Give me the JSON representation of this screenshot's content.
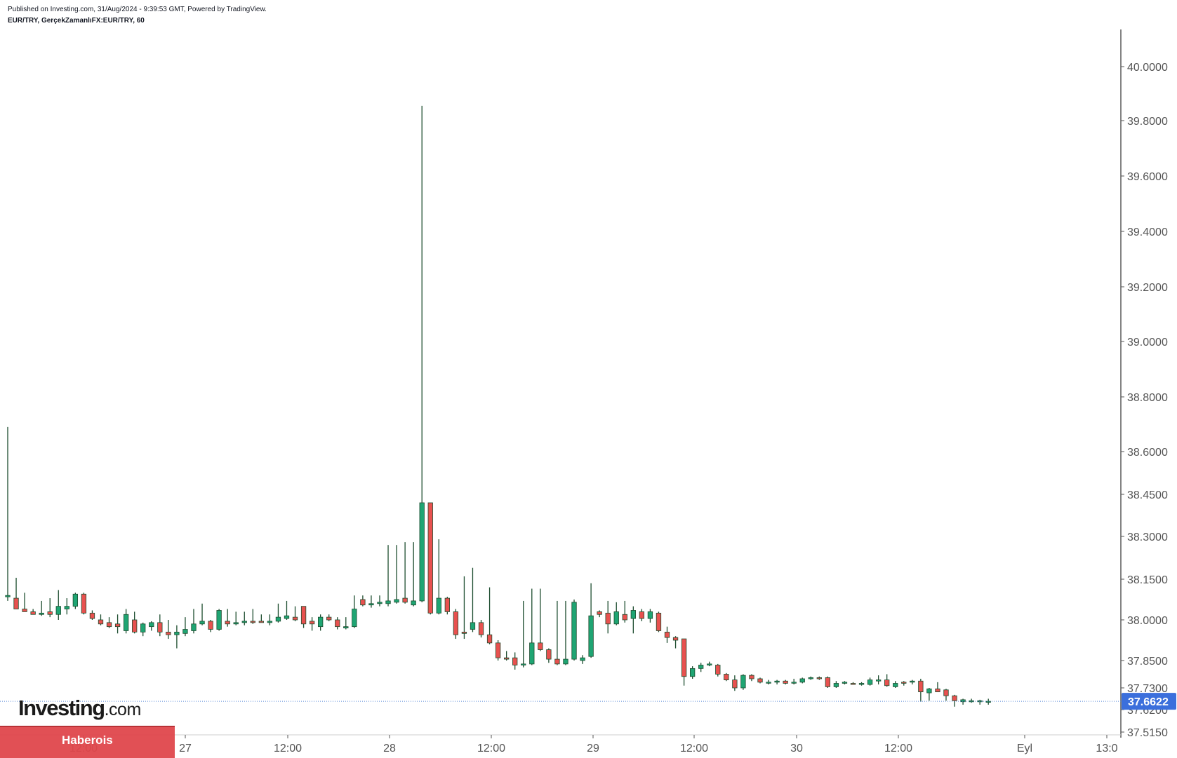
{
  "header": {
    "published": "Published on Investing.com, 31/Aug/2024 - 9:39:53 GMT, Powered by TradingView.",
    "symbol": "EUR/TRY, GerçekZamanlıFX:EUR/TRY, 60"
  },
  "colors": {
    "up": "#1fa573",
    "down": "#e8514f",
    "wick": "#1d4d2f",
    "price_line": "#5b8ad6",
    "price_label_bg": "#3b6fdc",
    "grid": "#ffffff"
  },
  "watermark": {
    "brand": "Investing",
    "suffix": ".com",
    "badge": "Haberois"
  },
  "chart_data": {
    "type": "candlestick",
    "title": "EUR/TRY, GerçekZamanlıFX:EUR/TRY, 60",
    "interval": "60",
    "y_axis": {
      "ticks": [
        "40.0000",
        "39.8000",
        "39.6000",
        "39.4000",
        "39.2000",
        "39.0000",
        "38.8000",
        "38.6000",
        "38.4500",
        "38.3000",
        "38.1500",
        "38.0000",
        "37.8500",
        "37.7300",
        "37.6200",
        "37.5150"
      ],
      "ylim": [
        37.5,
        40.13
      ]
    },
    "x_axis": {
      "ticks": [
        "12:00",
        "27",
        "12:00",
        "28",
        "12:00",
        "29",
        "12:00",
        "30",
        "12:00",
        "Eyl",
        "13:0"
      ]
    },
    "last_price": "37.6622",
    "last_price_value": 37.6622,
    "candles": [
      {
        "o": 38.085,
        "h": 38.69,
        "l": 38.07,
        "c": 38.09
      },
      {
        "o": 38.08,
        "h": 38.155,
        "l": 38.04,
        "c": 38.04
      },
      {
        "o": 38.04,
        "h": 38.1,
        "l": 38.03,
        "c": 38.03
      },
      {
        "o": 38.03,
        "h": 38.04,
        "l": 38.02,
        "c": 38.02
      },
      {
        "o": 38.02,
        "h": 38.07,
        "l": 38.015,
        "c": 38.025
      },
      {
        "o": 38.03,
        "h": 38.08,
        "l": 38.01,
        "c": 38.02
      },
      {
        "o": 38.02,
        "h": 38.11,
        "l": 38.0,
        "c": 38.05
      },
      {
        "o": 38.04,
        "h": 38.08,
        "l": 38.02,
        "c": 38.05
      },
      {
        "o": 38.05,
        "h": 38.1,
        "l": 38.04,
        "c": 38.095
      },
      {
        "o": 38.095,
        "h": 38.1,
        "l": 38.02,
        "c": 38.025
      },
      {
        "o": 38.025,
        "h": 38.035,
        "l": 38.0,
        "c": 38.005
      },
      {
        "o": 38.0,
        "h": 38.02,
        "l": 37.98,
        "c": 37.985
      },
      {
        "o": 37.99,
        "h": 38.01,
        "l": 37.97,
        "c": 37.975
      },
      {
        "o": 37.985,
        "h": 38.02,
        "l": 37.95,
        "c": 37.975
      },
      {
        "o": 37.96,
        "h": 38.04,
        "l": 37.95,
        "c": 38.02
      },
      {
        "o": 38.0,
        "h": 38.03,
        "l": 37.95,
        "c": 37.955
      },
      {
        "o": 37.955,
        "h": 37.99,
        "l": 37.94,
        "c": 37.985
      },
      {
        "o": 37.975,
        "h": 37.995,
        "l": 37.96,
        "c": 37.99
      },
      {
        "o": 37.99,
        "h": 38.02,
        "l": 37.94,
        "c": 37.955
      },
      {
        "o": 37.955,
        "h": 38.0,
        "l": 37.93,
        "c": 37.945
      },
      {
        "o": 37.945,
        "h": 37.98,
        "l": 37.895,
        "c": 37.955
      },
      {
        "o": 37.95,
        "h": 38.01,
        "l": 37.94,
        "c": 37.965
      },
      {
        "o": 37.96,
        "h": 38.04,
        "l": 37.95,
        "c": 37.985
      },
      {
        "o": 37.985,
        "h": 38.06,
        "l": 37.98,
        "c": 37.995
      },
      {
        "o": 37.995,
        "h": 38.0,
        "l": 37.955,
        "c": 37.965
      },
      {
        "o": 37.965,
        "h": 38.04,
        "l": 37.96,
        "c": 38.035
      },
      {
        "o": 37.995,
        "h": 38.04,
        "l": 37.975,
        "c": 37.985
      },
      {
        "o": 37.985,
        "h": 38.03,
        "l": 37.98,
        "c": 37.99
      },
      {
        "o": 37.99,
        "h": 38.03,
        "l": 37.98,
        "c": 37.995
      },
      {
        "o": 37.995,
        "h": 38.04,
        "l": 37.985,
        "c": 37.99
      },
      {
        "o": 37.995,
        "h": 38.02,
        "l": 37.99,
        "c": 37.99
      },
      {
        "o": 37.99,
        "h": 38.02,
        "l": 37.98,
        "c": 37.995
      },
      {
        "o": 37.995,
        "h": 38.06,
        "l": 37.99,
        "c": 38.01
      },
      {
        "o": 38.005,
        "h": 38.07,
        "l": 38.0,
        "c": 38.015
      },
      {
        "o": 38.01,
        "h": 38.05,
        "l": 37.995,
        "c": 38.0
      },
      {
        "o": 38.05,
        "h": 38.05,
        "l": 37.97,
        "c": 37.985
      },
      {
        "o": 37.995,
        "h": 38.01,
        "l": 37.96,
        "c": 37.985
      },
      {
        "o": 37.975,
        "h": 38.02,
        "l": 37.96,
        "c": 38.01
      },
      {
        "o": 38.01,
        "h": 38.02,
        "l": 37.995,
        "c": 38.0
      },
      {
        "o": 38.0,
        "h": 38.01,
        "l": 37.965,
        "c": 37.975
      },
      {
        "o": 37.97,
        "h": 38.01,
        "l": 37.965,
        "c": 37.975
      },
      {
        "o": 37.975,
        "h": 38.09,
        "l": 37.97,
        "c": 38.04
      },
      {
        "o": 38.075,
        "h": 38.09,
        "l": 38.05,
        "c": 38.055
      },
      {
        "o": 38.055,
        "h": 38.09,
        "l": 38.045,
        "c": 38.06
      },
      {
        "o": 38.06,
        "h": 38.09,
        "l": 38.05,
        "c": 38.065
      },
      {
        "o": 38.06,
        "h": 38.27,
        "l": 38.05,
        "c": 38.07
      },
      {
        "o": 38.065,
        "h": 38.27,
        "l": 38.06,
        "c": 38.075
      },
      {
        "o": 38.08,
        "h": 38.28,
        "l": 38.06,
        "c": 38.065
      },
      {
        "o": 38.055,
        "h": 38.28,
        "l": 38.05,
        "c": 38.07
      },
      {
        "o": 38.07,
        "h": 39.855,
        "l": 38.065,
        "c": 38.42
      },
      {
        "o": 38.42,
        "h": 38.42,
        "l": 38.02,
        "c": 38.025
      },
      {
        "o": 38.025,
        "h": 38.29,
        "l": 38.02,
        "c": 38.08
      },
      {
        "o": 38.08,
        "h": 38.085,
        "l": 38.02,
        "c": 38.03
      },
      {
        "o": 38.03,
        "h": 38.04,
        "l": 37.93,
        "c": 37.945
      },
      {
        "o": 37.955,
        "h": 38.16,
        "l": 37.93,
        "c": 37.95
      },
      {
        "o": 37.965,
        "h": 38.19,
        "l": 37.955,
        "c": 37.99
      },
      {
        "o": 37.99,
        "h": 38.0,
        "l": 37.935,
        "c": 37.945
      },
      {
        "o": 37.945,
        "h": 38.12,
        "l": 37.91,
        "c": 37.915
      },
      {
        "o": 37.915,
        "h": 37.925,
        "l": 37.85,
        "c": 37.86
      },
      {
        "o": 37.86,
        "h": 37.885,
        "l": 37.85,
        "c": 37.855
      },
      {
        "o": 37.86,
        "h": 37.88,
        "l": 37.81,
        "c": 37.83
      },
      {
        "o": 37.83,
        "h": 38.07,
        "l": 37.82,
        "c": 37.835
      },
      {
        "o": 37.835,
        "h": 38.115,
        "l": 37.83,
        "c": 37.915
      },
      {
        "o": 37.915,
        "h": 38.115,
        "l": 37.885,
        "c": 37.89
      },
      {
        "o": 37.89,
        "h": 37.895,
        "l": 37.84,
        "c": 37.855
      },
      {
        "o": 37.855,
        "h": 38.07,
        "l": 37.83,
        "c": 37.835
      },
      {
        "o": 37.835,
        "h": 38.07,
        "l": 37.83,
        "c": 37.855
      },
      {
        "o": 37.855,
        "h": 38.075,
        "l": 37.85,
        "c": 38.065
      },
      {
        "o": 37.85,
        "h": 37.87,
        "l": 37.835,
        "c": 37.86
      },
      {
        "o": 37.865,
        "h": 38.135,
        "l": 37.86,
        "c": 38.015
      },
      {
        "o": 38.03,
        "h": 38.035,
        "l": 38.01,
        "c": 38.02
      },
      {
        "o": 38.025,
        "h": 38.07,
        "l": 37.95,
        "c": 37.985
      },
      {
        "o": 37.985,
        "h": 38.065,
        "l": 37.98,
        "c": 38.03
      },
      {
        "o": 38.02,
        "h": 38.07,
        "l": 37.99,
        "c": 38.0
      },
      {
        "o": 38.005,
        "h": 38.05,
        "l": 37.95,
        "c": 38.035
      },
      {
        "o": 38.03,
        "h": 38.04,
        "l": 37.995,
        "c": 38.005
      },
      {
        "o": 38.005,
        "h": 38.04,
        "l": 37.99,
        "c": 38.03
      },
      {
        "o": 38.025,
        "h": 38.03,
        "l": 37.955,
        "c": 37.96
      },
      {
        "o": 37.955,
        "h": 37.975,
        "l": 37.915,
        "c": 37.935
      },
      {
        "o": 37.935,
        "h": 37.94,
        "l": 37.895,
        "c": 37.925
      },
      {
        "o": 37.93,
        "h": 37.93,
        "l": 37.74,
        "c": 37.78
      },
      {
        "o": 37.78,
        "h": 37.825,
        "l": 37.77,
        "c": 37.815
      },
      {
        "o": 37.815,
        "h": 37.84,
        "l": 37.8,
        "c": 37.83
      },
      {
        "o": 37.83,
        "h": 37.845,
        "l": 37.825,
        "c": 37.835
      },
      {
        "o": 37.83,
        "h": 37.835,
        "l": 37.78,
        "c": 37.79
      },
      {
        "o": 37.79,
        "h": 37.795,
        "l": 37.76,
        "c": 37.765
      },
      {
        "o": 37.765,
        "h": 37.785,
        "l": 37.715,
        "c": 37.73
      },
      {
        "o": 37.73,
        "h": 37.79,
        "l": 37.72,
        "c": 37.785
      },
      {
        "o": 37.785,
        "h": 37.79,
        "l": 37.76,
        "c": 37.77
      },
      {
        "o": 37.77,
        "h": 37.775,
        "l": 37.75,
        "c": 37.755
      },
      {
        "o": 37.755,
        "h": 37.765,
        "l": 37.745,
        "c": 37.755
      },
      {
        "o": 37.755,
        "h": 37.765,
        "l": 37.745,
        "c": 37.76
      },
      {
        "o": 37.76,
        "h": 37.765,
        "l": 37.745,
        "c": 37.75
      },
      {
        "o": 37.755,
        "h": 37.77,
        "l": 37.745,
        "c": 37.755
      },
      {
        "o": 37.755,
        "h": 37.775,
        "l": 37.75,
        "c": 37.77
      },
      {
        "o": 37.77,
        "h": 37.78,
        "l": 37.765,
        "c": 37.775
      },
      {
        "o": 37.775,
        "h": 37.78,
        "l": 37.765,
        "c": 37.77
      },
      {
        "o": 37.775,
        "h": 37.78,
        "l": 37.73,
        "c": 37.735
      },
      {
        "o": 37.735,
        "h": 37.76,
        "l": 37.73,
        "c": 37.75
      },
      {
        "o": 37.75,
        "h": 37.76,
        "l": 37.745,
        "c": 37.755
      },
      {
        "o": 37.75,
        "h": 37.755,
        "l": 37.745,
        "c": 37.745
      },
      {
        "o": 37.745,
        "h": 37.755,
        "l": 37.74,
        "c": 37.75
      },
      {
        "o": 37.745,
        "h": 37.775,
        "l": 37.74,
        "c": 37.765
      },
      {
        "o": 37.76,
        "h": 37.785,
        "l": 37.745,
        "c": 37.765
      },
      {
        "o": 37.765,
        "h": 37.79,
        "l": 37.735,
        "c": 37.74
      },
      {
        "o": 37.735,
        "h": 37.76,
        "l": 37.73,
        "c": 37.75
      },
      {
        "o": 37.755,
        "h": 37.76,
        "l": 37.74,
        "c": 37.75
      },
      {
        "o": 37.755,
        "h": 37.765,
        "l": 37.745,
        "c": 37.76
      },
      {
        "o": 37.76,
        "h": 37.77,
        "l": 37.66,
        "c": 37.71
      },
      {
        "o": 37.705,
        "h": 37.73,
        "l": 37.665,
        "c": 37.725
      },
      {
        "o": 37.725,
        "h": 37.755,
        "l": 37.71,
        "c": 37.71
      },
      {
        "o": 37.72,
        "h": 37.725,
        "l": 37.665,
        "c": 37.69
      },
      {
        "o": 37.69,
        "h": 37.695,
        "l": 37.635,
        "c": 37.665
      },
      {
        "o": 37.66,
        "h": 37.675,
        "l": 37.645,
        "c": 37.67
      },
      {
        "o": 37.665,
        "h": 37.675,
        "l": 37.655,
        "c": 37.665
      },
      {
        "o": 37.665,
        "h": 37.67,
        "l": 37.645,
        "c": 37.665
      },
      {
        "o": 37.66,
        "h": 37.675,
        "l": 37.645,
        "c": 37.6622
      }
    ]
  }
}
